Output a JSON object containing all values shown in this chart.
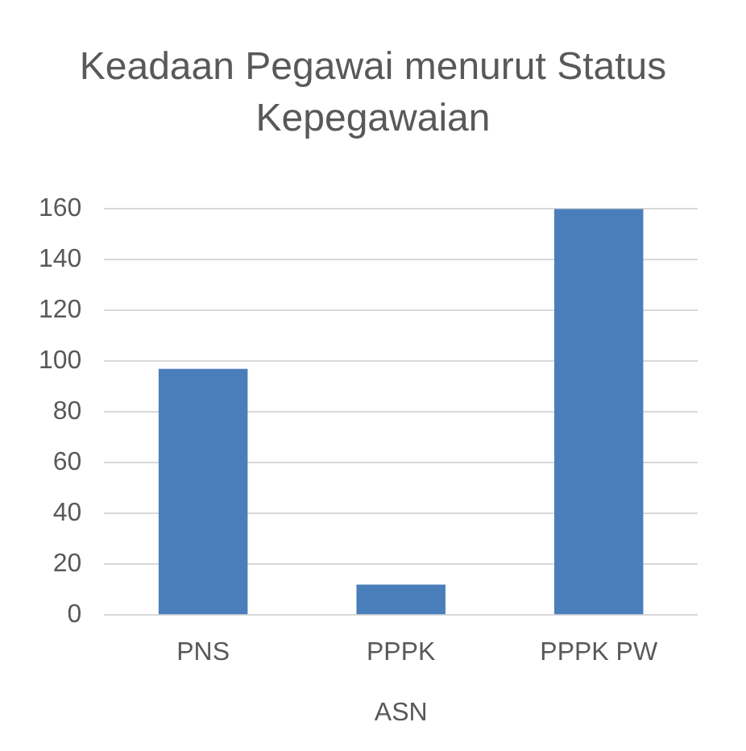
{
  "chart_data": {
    "type": "bar",
    "title": "Keadaan Pegawai menurut Status Kepegawaian",
    "xlabel": "ASN",
    "categories": [
      "PNS",
      "PPPK",
      "PPPK PW"
    ],
    "values": [
      97,
      12,
      160
    ],
    "color": "#4a7ebb",
    "ylim": [
      0,
      160
    ],
    "yticks": [
      0,
      20,
      40,
      60,
      80,
      100,
      120,
      140,
      160
    ],
    "grid": "y",
    "legend": false
  }
}
